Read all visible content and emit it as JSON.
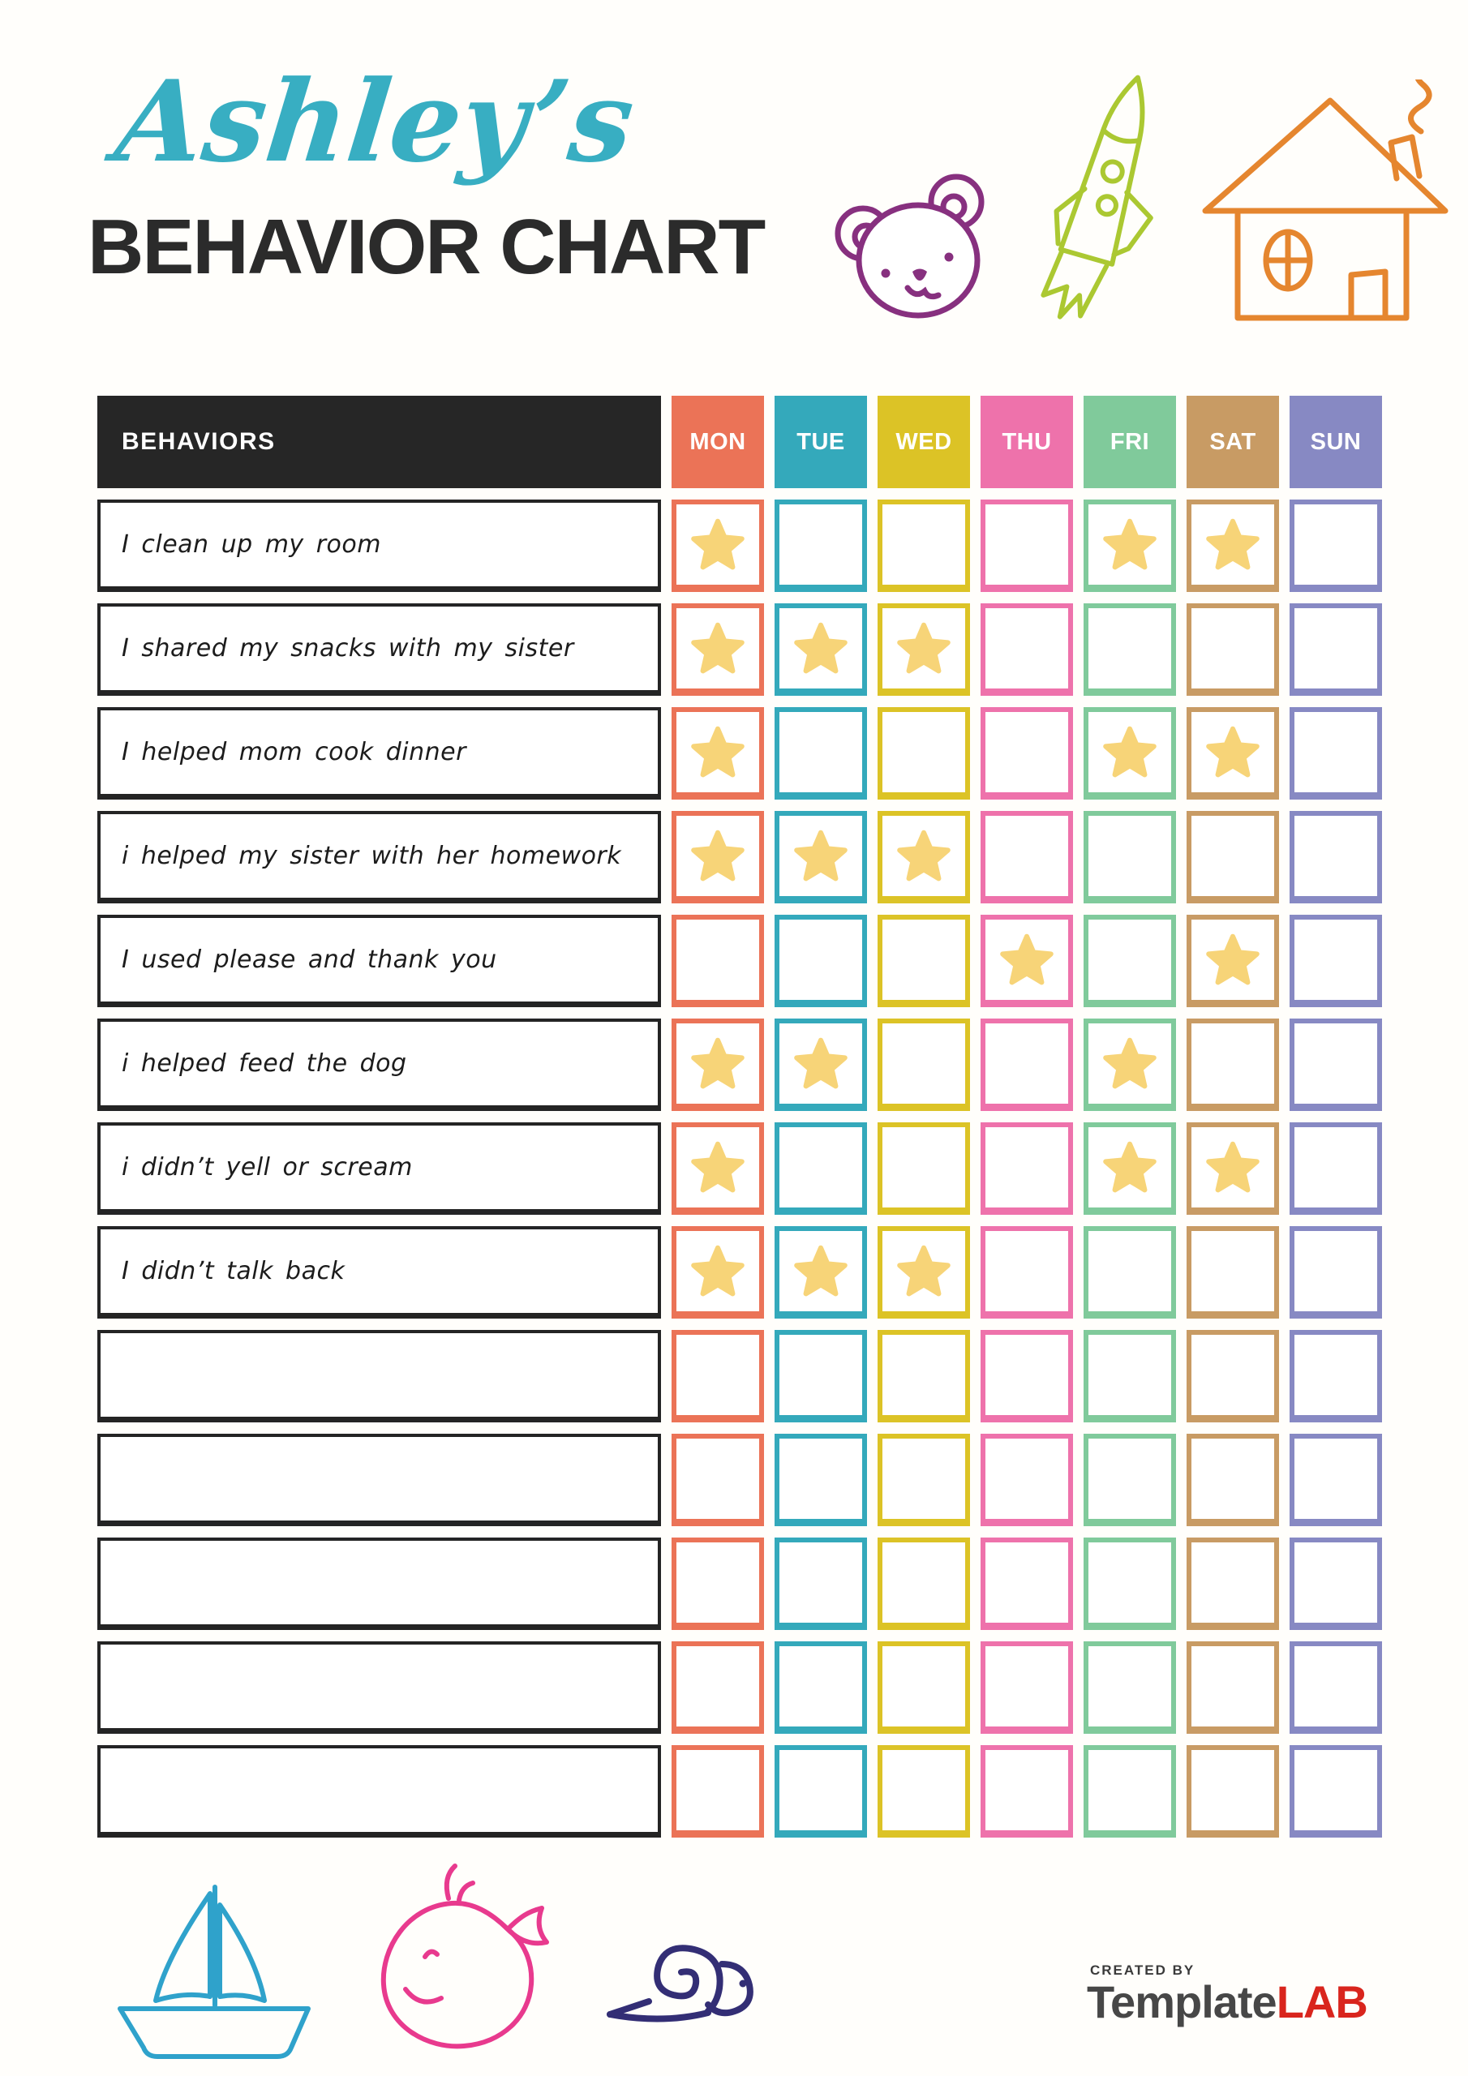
{
  "title": {
    "name": "Ashley’s",
    "heading": "BEHAVIOR CHART",
    "name_color": "#38aec2",
    "heading_color": "#2b2b2b"
  },
  "doodles": {
    "bear_color": "#87307f",
    "rocket_color": "#abc832",
    "house_color": "#e5862f",
    "sailboat_color": "#2fa2cb",
    "whale_color": "#e83a8e",
    "snail_color": "#332e75"
  },
  "table": {
    "behaviors_header": "BEHAVIORS",
    "header_bg": "#262626",
    "star_color": "#f7d478",
    "days": [
      {
        "label": "MON",
        "color": "#eb7357"
      },
      {
        "label": "TUE",
        "color": "#34a9bb"
      },
      {
        "label": "WED",
        "color": "#dcc326"
      },
      {
        "label": "THU",
        "color": "#ee72ab"
      },
      {
        "label": "FRI",
        "color": "#80ca9b"
      },
      {
        "label": "SAT",
        "color": "#c89b64"
      },
      {
        "label": "SUN",
        "color": "#8789c3"
      }
    ],
    "rows": [
      {
        "behavior": "I clean up my room",
        "stars": [
          "MON",
          "FRI",
          "SAT"
        ]
      },
      {
        "behavior": "I shared my snacks with my sister",
        "stars": [
          "MON",
          "TUE",
          "WED"
        ]
      },
      {
        "behavior": "I helped mom cook dinner",
        "stars": [
          "MON",
          "FRI",
          "SAT"
        ]
      },
      {
        "behavior": "i helped my sister with her homework",
        "stars": [
          "MON",
          "TUE",
          "WED"
        ]
      },
      {
        "behavior": "I used please and thank you",
        "stars": [
          "THU",
          "SAT"
        ]
      },
      {
        "behavior": "i helped feed the dog",
        "stars": [
          "MON",
          "TUE",
          "FRI"
        ]
      },
      {
        "behavior": "i didn’t yell or scream",
        "stars": [
          "MON",
          "FRI",
          "SAT"
        ]
      },
      {
        "behavior": "I didn’t talk back",
        "stars": [
          "MON",
          "TUE",
          "WED"
        ]
      },
      {
        "behavior": "",
        "stars": []
      },
      {
        "behavior": "",
        "stars": []
      },
      {
        "behavior": "",
        "stars": []
      },
      {
        "behavior": "",
        "stars": []
      },
      {
        "behavior": "",
        "stars": []
      }
    ]
  },
  "footer": {
    "created_by": "CREATED BY",
    "brand_primary": "Template",
    "brand_accent": "LAB",
    "created_by_color": "#3a3a3a",
    "brand_primary_color": "#474747",
    "brand_accent_color": "#d9251d"
  }
}
